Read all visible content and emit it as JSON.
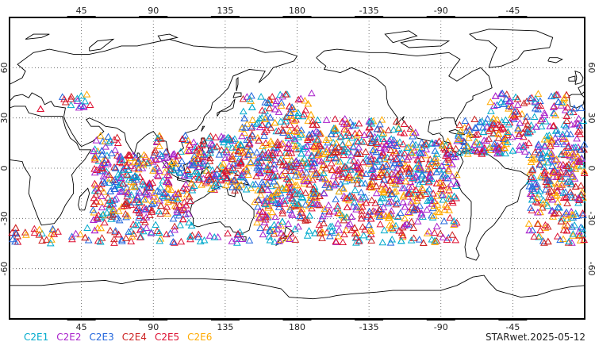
{
  "chart_data": {
    "type": "scatter",
    "projection": "cylindrical equidistant",
    "lon_range": [
      0,
      360
    ],
    "lat_range": [
      -90,
      90
    ],
    "x_tick_labels": [
      "45",
      "90",
      "135",
      "180",
      "-135",
      "-90",
      "-45"
    ],
    "y_tick_labels": [
      "60",
      "30",
      "0",
      "-30",
      "-60"
    ],
    "grid": "dotted",
    "legend_placement": "bottom-left",
    "series": [
      {
        "name": "C2E1",
        "color": "#00aacc",
        "marker": "triangle-open"
      },
      {
        "name": "C2E2",
        "color": "#aa22cc",
        "marker": "triangle-open"
      },
      {
        "name": "C2E3",
        "color": "#2266dd",
        "marker": "triangle-open"
      },
      {
        "name": "C2E4",
        "color": "#cc2222",
        "marker": "triangle-open"
      },
      {
        "name": "C2E5",
        "color": "#dd1133",
        "marker": "triangle-open"
      },
      {
        "name": "C2E6",
        "color": "#ffaa00",
        "marker": "triangle-open"
      }
    ],
    "observation_band_lat": [
      -45,
      45
    ],
    "caption": "STARwet.2025-05-12"
  }
}
